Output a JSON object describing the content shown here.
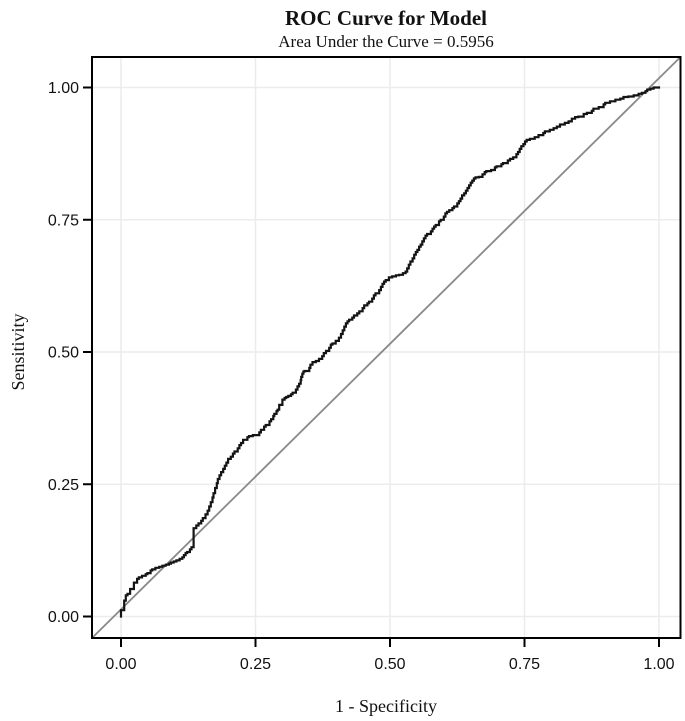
{
  "figure": {
    "background": "#ffffff",
    "title": "ROC Curve for Model",
    "subtitle": "Area Under the Curve = 0.5956"
  },
  "colors": {
    "curve": "#141414",
    "diagonal": "#8a8a8a",
    "grid": "#ececec",
    "frame": "#000000",
    "text": "#111111"
  },
  "chart_data": {
    "type": "line",
    "chart_kind": "roc-curve",
    "title": "ROC Curve for Model",
    "subtitle": "Area Under the Curve = 0.5956",
    "auc": 0.5956,
    "xlabel": "1 - Specificity",
    "ylabel": "Sensitivity",
    "xlim": [
      0.0,
      1.0
    ],
    "ylim": [
      0.0,
      1.0
    ],
    "grid": true,
    "legend": "none",
    "x_ticks": [
      {
        "v": 0.0,
        "label": "0.00"
      },
      {
        "v": 0.25,
        "label": "0.25"
      },
      {
        "v": 0.5,
        "label": "0.50"
      },
      {
        "v": 0.75,
        "label": "0.75"
      },
      {
        "v": 1.0,
        "label": "1.00"
      }
    ],
    "y_ticks": [
      {
        "v": 0.0,
        "label": "0.00"
      },
      {
        "v": 0.25,
        "label": "0.25"
      },
      {
        "v": 0.5,
        "label": "0.50"
      },
      {
        "v": 0.75,
        "label": "0.75"
      },
      {
        "v": 1.0,
        "label": "1.00"
      }
    ],
    "reference_line": {
      "name": "chance-diagonal",
      "from": [
        0,
        0
      ],
      "to": [
        1,
        1
      ],
      "color": "#8a8a8a",
      "style": "solid",
      "extends_to_plot_corners": true
    },
    "series": [
      {
        "name": "ROC curve",
        "color": "#141414",
        "line_style": "step",
        "points": [
          [
            0.0,
            0.0
          ],
          [
            0.0,
            0.012
          ],
          [
            0.006,
            0.012
          ],
          [
            0.006,
            0.026
          ],
          [
            0.009,
            0.03
          ],
          [
            0.012,
            0.04
          ],
          [
            0.017,
            0.043
          ],
          [
            0.017,
            0.049
          ],
          [
            0.024,
            0.052
          ],
          [
            0.024,
            0.061
          ],
          [
            0.03,
            0.064
          ],
          [
            0.033,
            0.071
          ],
          [
            0.039,
            0.074
          ],
          [
            0.046,
            0.077
          ],
          [
            0.049,
            0.08
          ],
          [
            0.055,
            0.082
          ],
          [
            0.058,
            0.087
          ],
          [
            0.064,
            0.089
          ],
          [
            0.071,
            0.092
          ],
          [
            0.077,
            0.094
          ],
          [
            0.083,
            0.096
          ],
          [
            0.089,
            0.098
          ],
          [
            0.093,
            0.1
          ],
          [
            0.098,
            0.102
          ],
          [
            0.103,
            0.104
          ],
          [
            0.109,
            0.106
          ],
          [
            0.114,
            0.109
          ],
          [
            0.117,
            0.112
          ],
          [
            0.12,
            0.116
          ],
          [
            0.123,
            0.12
          ],
          [
            0.128,
            0.122
          ],
          [
            0.131,
            0.127
          ],
          [
            0.135,
            0.131
          ],
          [
            0.135,
            0.163
          ],
          [
            0.14,
            0.167
          ],
          [
            0.144,
            0.172
          ],
          [
            0.149,
            0.176
          ],
          [
            0.152,
            0.181
          ],
          [
            0.157,
            0.186
          ],
          [
            0.161,
            0.193
          ],
          [
            0.164,
            0.2
          ],
          [
            0.167,
            0.208
          ],
          [
            0.17,
            0.216
          ],
          [
            0.172,
            0.225
          ],
          [
            0.175,
            0.233
          ],
          [
            0.178,
            0.243
          ],
          [
            0.18,
            0.252
          ],
          [
            0.183,
            0.26
          ],
          [
            0.186,
            0.267
          ],
          [
            0.19,
            0.273
          ],
          [
            0.193,
            0.279
          ],
          [
            0.196,
            0.285
          ],
          [
            0.199,
            0.291
          ],
          [
            0.204,
            0.298
          ],
          [
            0.208,
            0.302
          ],
          [
            0.211,
            0.308
          ],
          [
            0.217,
            0.312
          ],
          [
            0.22,
            0.318
          ],
          [
            0.223,
            0.324
          ],
          [
            0.227,
            0.328
          ],
          [
            0.235,
            0.334
          ],
          [
            0.238,
            0.339
          ],
          [
            0.245,
            0.341
          ],
          [
            0.257,
            0.343
          ],
          [
            0.26,
            0.348
          ],
          [
            0.266,
            0.353
          ],
          [
            0.269,
            0.359
          ],
          [
            0.276,
            0.362
          ],
          [
            0.279,
            0.369
          ],
          [
            0.283,
            0.373
          ],
          [
            0.285,
            0.379
          ],
          [
            0.289,
            0.383
          ],
          [
            0.291,
            0.388
          ],
          [
            0.294,
            0.391
          ],
          [
            0.294,
            0.397
          ],
          [
            0.3,
            0.4
          ],
          [
            0.3,
            0.407
          ],
          [
            0.304,
            0.41
          ],
          [
            0.307,
            0.413
          ],
          [
            0.311,
            0.415
          ],
          [
            0.316,
            0.417
          ],
          [
            0.319,
            0.42
          ],
          [
            0.325,
            0.423
          ],
          [
            0.328,
            0.429
          ],
          [
            0.331,
            0.435
          ],
          [
            0.334,
            0.44
          ],
          [
            0.335,
            0.447
          ],
          [
            0.337,
            0.453
          ],
          [
            0.339,
            0.459
          ],
          [
            0.341,
            0.463
          ],
          [
            0.35,
            0.464
          ],
          [
            0.352,
            0.47
          ],
          [
            0.356,
            0.476
          ],
          [
            0.362,
            0.481
          ],
          [
            0.368,
            0.483
          ],
          [
            0.374,
            0.487
          ],
          [
            0.377,
            0.492
          ],
          [
            0.381,
            0.498
          ],
          [
            0.387,
            0.502
          ],
          [
            0.39,
            0.508
          ],
          [
            0.393,
            0.514
          ],
          [
            0.399,
            0.516
          ],
          [
            0.405,
            0.521
          ],
          [
            0.409,
            0.527
          ],
          [
            0.412,
            0.534
          ],
          [
            0.415,
            0.541
          ],
          [
            0.418,
            0.548
          ],
          [
            0.421,
            0.554
          ],
          [
            0.424,
            0.558
          ],
          [
            0.43,
            0.561
          ],
          [
            0.433,
            0.565
          ],
          [
            0.439,
            0.569
          ],
          [
            0.443,
            0.573
          ],
          [
            0.449,
            0.577
          ],
          [
            0.452,
            0.583
          ],
          [
            0.458,
            0.588
          ],
          [
            0.461,
            0.592
          ],
          [
            0.467,
            0.595
          ],
          [
            0.47,
            0.601
          ],
          [
            0.473,
            0.607
          ],
          [
            0.48,
            0.611
          ],
          [
            0.483,
            0.617
          ],
          [
            0.486,
            0.623
          ],
          [
            0.489,
            0.629
          ],
          [
            0.492,
            0.633
          ],
          [
            0.498,
            0.636
          ],
          [
            0.504,
            0.641
          ],
          [
            0.511,
            0.643
          ],
          [
            0.517,
            0.645
          ],
          [
            0.524,
            0.646
          ],
          [
            0.529,
            0.649
          ],
          [
            0.532,
            0.652
          ],
          [
            0.535,
            0.658
          ],
          [
            0.538,
            0.665
          ],
          [
            0.542,
            0.671
          ],
          [
            0.545,
            0.677
          ],
          [
            0.548,
            0.684
          ],
          [
            0.551,
            0.689
          ],
          [
            0.554,
            0.693
          ],
          [
            0.557,
            0.699
          ],
          [
            0.56,
            0.703
          ],
          [
            0.563,
            0.709
          ],
          [
            0.566,
            0.715
          ],
          [
            0.569,
            0.72
          ],
          [
            0.576,
            0.723
          ],
          [
            0.579,
            0.728
          ],
          [
            0.582,
            0.733
          ],
          [
            0.585,
            0.737
          ],
          [
            0.591,
            0.74
          ],
          [
            0.594,
            0.747
          ],
          [
            0.6,
            0.75
          ],
          [
            0.603,
            0.756
          ],
          [
            0.606,
            0.762
          ],
          [
            0.61,
            0.765
          ],
          [
            0.616,
            0.768
          ],
          [
            0.619,
            0.772
          ],
          [
            0.625,
            0.775
          ],
          [
            0.628,
            0.781
          ],
          [
            0.631,
            0.785
          ],
          [
            0.634,
            0.79
          ],
          [
            0.638,
            0.796
          ],
          [
            0.641,
            0.8
          ],
          [
            0.644,
            0.805
          ],
          [
            0.647,
            0.81
          ],
          [
            0.65,
            0.815
          ],
          [
            0.653,
            0.82
          ],
          [
            0.656,
            0.824
          ],
          [
            0.659,
            0.828
          ],
          [
            0.665,
            0.83
          ],
          [
            0.672,
            0.831
          ],
          [
            0.676,
            0.836
          ],
          [
            0.679,
            0.84
          ],
          [
            0.688,
            0.842
          ],
          [
            0.695,
            0.844
          ],
          [
            0.698,
            0.849
          ],
          [
            0.707,
            0.851
          ],
          [
            0.71,
            0.855
          ],
          [
            0.719,
            0.857
          ],
          [
            0.723,
            0.862
          ],
          [
            0.729,
            0.865
          ],
          [
            0.735,
            0.868
          ],
          [
            0.738,
            0.874
          ],
          [
            0.741,
            0.878
          ],
          [
            0.744,
            0.884
          ],
          [
            0.748,
            0.889
          ],
          [
            0.751,
            0.893
          ],
          [
            0.754,
            0.898
          ],
          [
            0.76,
            0.901
          ],
          [
            0.769,
            0.903
          ],
          [
            0.776,
            0.906
          ],
          [
            0.785,
            0.91
          ],
          [
            0.788,
            0.914
          ],
          [
            0.797,
            0.917
          ],
          [
            0.804,
            0.92
          ],
          [
            0.81,
            0.923
          ],
          [
            0.816,
            0.926
          ],
          [
            0.825,
            0.93
          ],
          [
            0.832,
            0.933
          ],
          [
            0.838,
            0.936
          ],
          [
            0.844,
            0.941
          ],
          [
            0.85,
            0.944
          ],
          [
            0.86,
            0.945
          ],
          [
            0.866,
            0.95
          ],
          [
            0.875,
            0.952
          ],
          [
            0.878,
            0.956
          ],
          [
            0.888,
            0.96
          ],
          [
            0.897,
            0.963
          ],
          [
            0.9,
            0.968
          ],
          [
            0.909,
            0.971
          ],
          [
            0.919,
            0.974
          ],
          [
            0.928,
            0.977
          ],
          [
            0.934,
            0.979
          ],
          [
            0.943,
            0.982
          ],
          [
            0.953,
            0.983
          ],
          [
            0.962,
            0.985
          ],
          [
            0.968,
            0.988
          ],
          [
            0.975,
            0.99
          ],
          [
            0.978,
            0.993
          ],
          [
            0.984,
            0.996
          ],
          [
            0.99,
            0.998
          ],
          [
            1.0,
            1.0
          ]
        ]
      }
    ]
  }
}
